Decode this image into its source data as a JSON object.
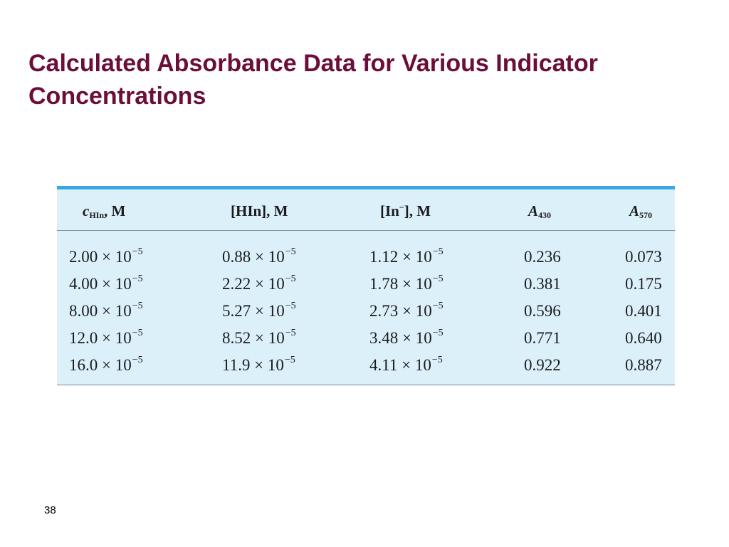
{
  "slide": {
    "title_line1": "Calculated Absorbance Data for Various Indicator",
    "title_line2": "Concentrations",
    "page_number": "38"
  },
  "table": {
    "headers": {
      "c_symbol": "c",
      "c_sub": "HIn",
      "c_unit": ", M",
      "hin": "[HIn], M",
      "in_open": "[In",
      "in_sup": "−",
      "in_close": "], M",
      "a_symbol": "A",
      "a430_sub": "430",
      "a570_sub": "570"
    },
    "rows": [
      {
        "c": "2.00 × 10",
        "c_exp": "−5",
        "hin": "0.88 × 10",
        "hin_exp": "−5",
        "in": "1.12 × 10",
        "in_exp": "−5",
        "a430": "0.236",
        "a570": "0.073"
      },
      {
        "c": "4.00 × 10",
        "c_exp": "−5",
        "hin": "2.22 × 10",
        "hin_exp": "−5",
        "in": "1.78 × 10",
        "in_exp": "−5",
        "a430": "0.381",
        "a570": "0.175"
      },
      {
        "c": "8.00 × 10",
        "c_exp": "−5",
        "hin": "5.27 × 10",
        "hin_exp": "−5",
        "in": "2.73 × 10",
        "in_exp": "−5",
        "a430": "0.596",
        "a570": "0.401"
      },
      {
        "c": "12.0 × 10",
        "c_exp": "−5",
        "hin": "8.52 × 10",
        "hin_exp": "−5",
        "in": "3.48 × 10",
        "in_exp": "−5",
        "a430": "0.771",
        "a570": "0.640"
      },
      {
        "c": "16.0 × 10",
        "c_exp": "−5",
        "hin": "11.9 × 10",
        "hin_exp": "−5",
        "in": "4.11 × 10",
        "in_exp": "−5",
        "a430": "0.922",
        "a570": "0.887"
      }
    ]
  },
  "colors": {
    "title": "#6b0f3a",
    "table_background": "#dcf0fa",
    "table_top_rule": "#3aa8e0"
  }
}
